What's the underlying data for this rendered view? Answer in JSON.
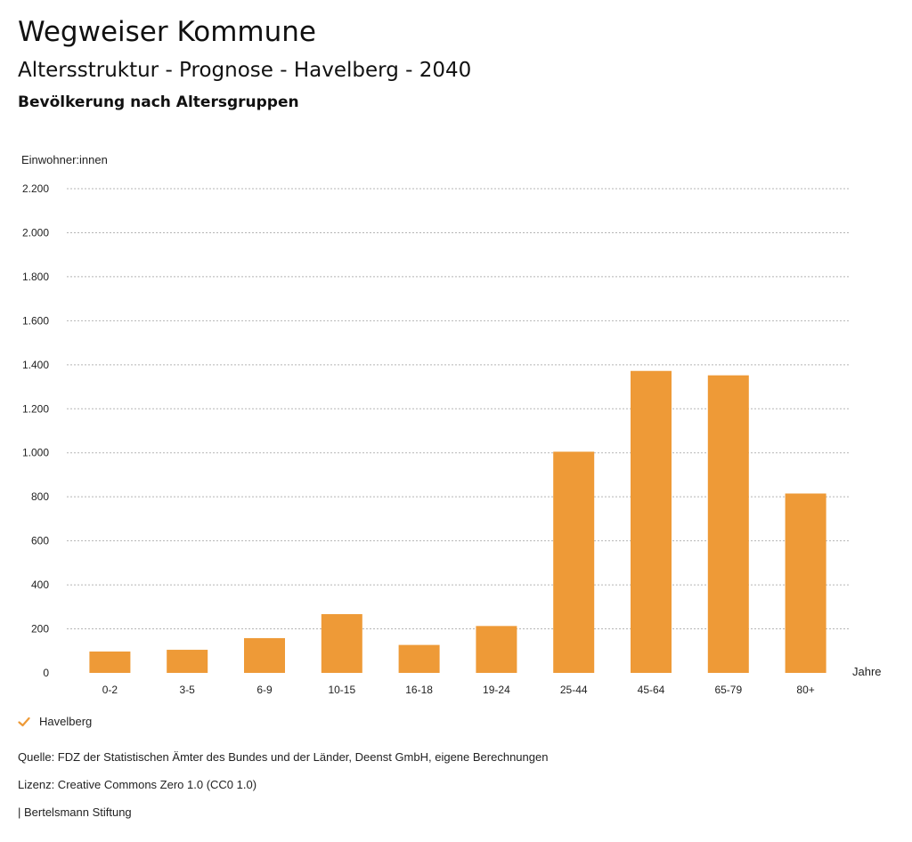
{
  "header": {
    "site_title": "Wegweiser Kommune",
    "chart_title": "Altersstruktur - Prognose - Havelberg - 2040",
    "chart_subtitle": "Bevölkerung nach Altersgruppen"
  },
  "chart_data": {
    "type": "bar",
    "ylabel": "Einwohner:innen",
    "xlabel": "Jahre",
    "ylim": [
      0,
      2200
    ],
    "yticks": [
      0,
      200,
      400,
      600,
      800,
      1000,
      1200,
      1400,
      1600,
      1800,
      2000,
      2200
    ],
    "ytick_labels": [
      "0",
      "200",
      "400",
      "600",
      "800",
      "1.000",
      "1.200",
      "1.400",
      "1.600",
      "1.800",
      "2.000",
      "2.200"
    ],
    "categories": [
      "0-2",
      "3-5",
      "6-9",
      "10-15",
      "16-18",
      "19-24",
      "25-44",
      "45-64",
      "65-79",
      "80+"
    ],
    "series": [
      {
        "name": "Havelberg",
        "values": [
          97,
          105,
          158,
          267,
          127,
          213,
          1005,
          1372,
          1352,
          815
        ]
      }
    ],
    "grid": true,
    "legend_position": "bottom-left"
  },
  "colors": {
    "bar": "#ee9a37",
    "grid": "#b5b5b5"
  },
  "legend": {
    "label": "Havelberg",
    "icon": "checkmark-icon"
  },
  "footer": {
    "source": "Quelle: FDZ der Statistischen Ämter des Bundes und der Länder, Deenst GmbH, eigene Berechnungen",
    "license": "Lizenz: Creative Commons Zero 1.0 (CC0 1.0)",
    "brand": "| Bertelsmann Stiftung"
  }
}
